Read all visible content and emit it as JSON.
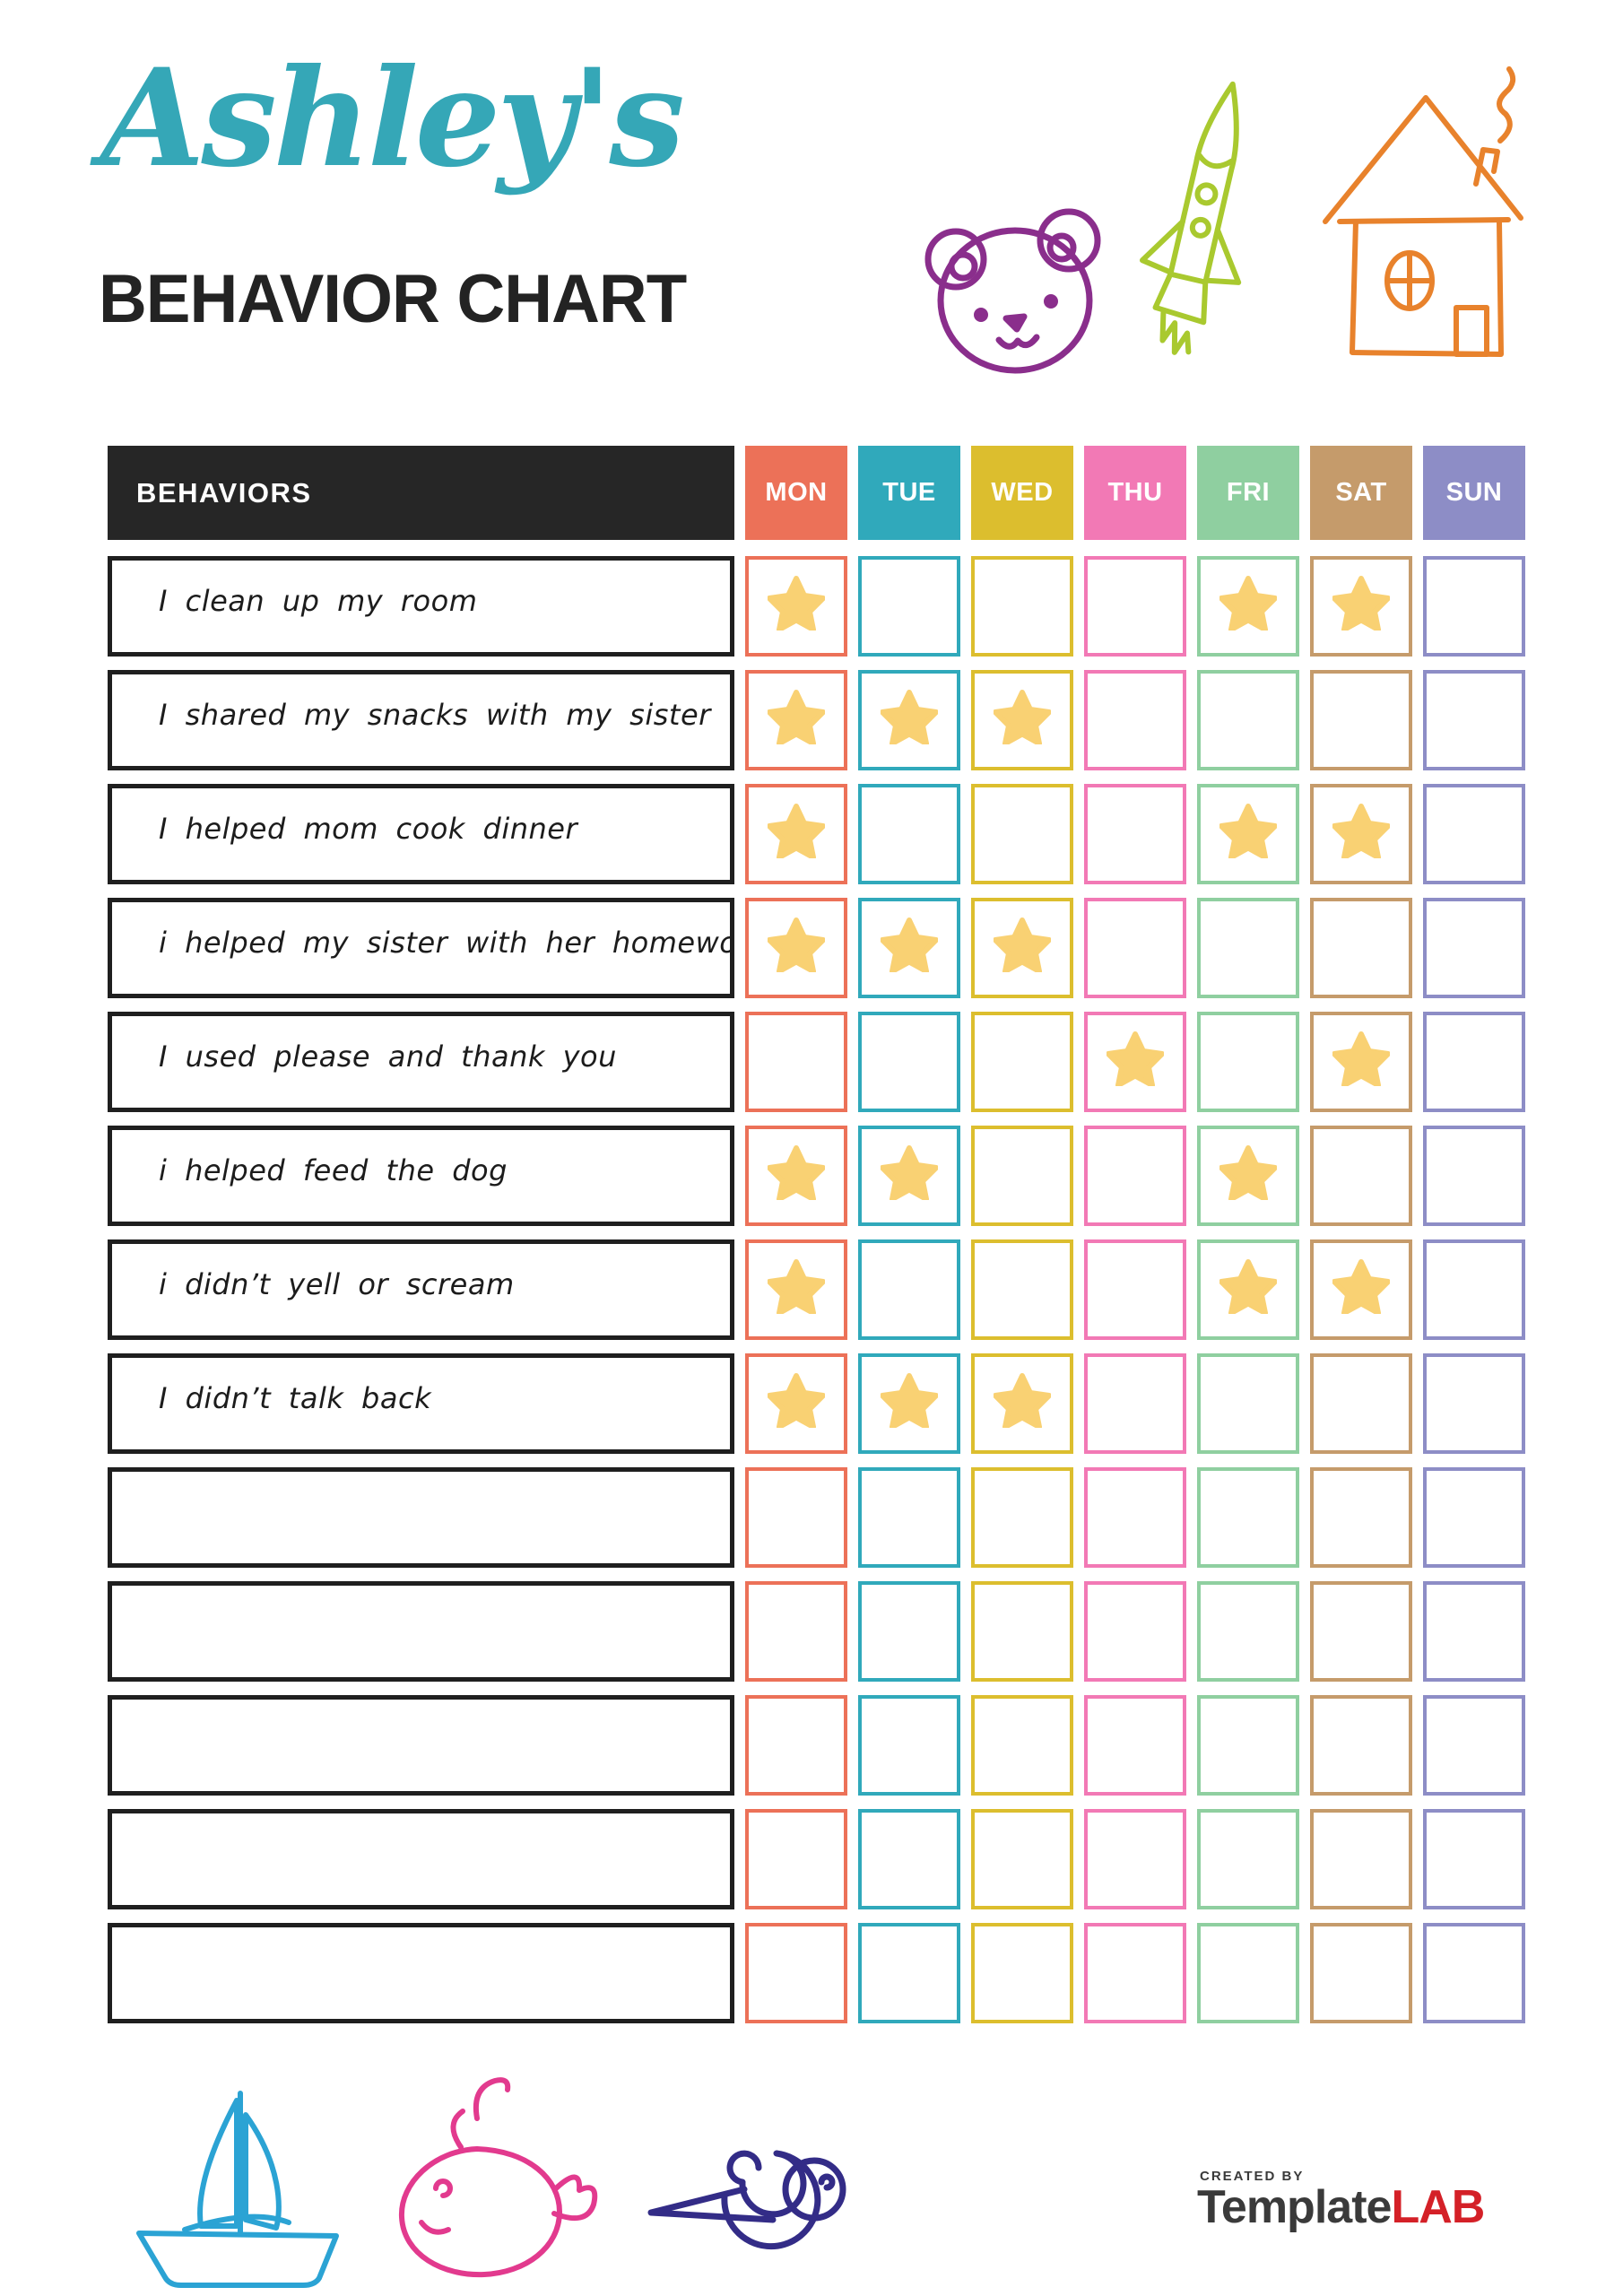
{
  "page": {
    "owner_name": "Ashley's",
    "title": "BEHAVIOR CHART"
  },
  "table": {
    "behaviors_header": "BEHAVIORS",
    "days": [
      {
        "label": "MON",
        "color": "#EC7158"
      },
      {
        "label": "TUE",
        "color": "#30A9BB"
      },
      {
        "label": "WED",
        "color": "#DCBE2E"
      },
      {
        "label": "THU",
        "color": "#F279B5"
      },
      {
        "label": "FRI",
        "color": "#8FCFA0"
      },
      {
        "label": "SAT",
        "color": "#C59B6B"
      },
      {
        "label": "SUN",
        "color": "#8D8DC6"
      }
    ],
    "rows": [
      {
        "behavior": "I clean up my room",
        "stars": [
          1,
          0,
          0,
          0,
          1,
          1,
          0
        ]
      },
      {
        "behavior": "I shared my snacks with my sister",
        "stars": [
          1,
          1,
          1,
          0,
          0,
          0,
          0
        ]
      },
      {
        "behavior": "I helped mom cook dinner",
        "stars": [
          1,
          0,
          0,
          0,
          1,
          1,
          0
        ]
      },
      {
        "behavior": "i helped my sister with her homework",
        "stars": [
          1,
          1,
          1,
          0,
          0,
          0,
          0
        ]
      },
      {
        "behavior": "I used please and thank you",
        "stars": [
          0,
          0,
          0,
          1,
          0,
          1,
          0
        ]
      },
      {
        "behavior": "i helped feed the dog",
        "stars": [
          1,
          1,
          0,
          0,
          1,
          0,
          0
        ]
      },
      {
        "behavior": "i didn’t yell or scream",
        "stars": [
          1,
          0,
          0,
          0,
          1,
          1,
          0
        ]
      },
      {
        "behavior": "I didn’t talk back",
        "stars": [
          1,
          1,
          1,
          0,
          0,
          0,
          0
        ]
      },
      {
        "behavior": "",
        "stars": [
          0,
          0,
          0,
          0,
          0,
          0,
          0
        ]
      },
      {
        "behavior": "",
        "stars": [
          0,
          0,
          0,
          0,
          0,
          0,
          0
        ]
      },
      {
        "behavior": "",
        "stars": [
          0,
          0,
          0,
          0,
          0,
          0,
          0
        ]
      },
      {
        "behavior": "",
        "stars": [
          0,
          0,
          0,
          0,
          0,
          0,
          0
        ]
      },
      {
        "behavior": "",
        "stars": [
          0,
          0,
          0,
          0,
          0,
          0,
          0
        ]
      }
    ]
  },
  "icons": {
    "top": [
      "bear-icon",
      "rocket-icon",
      "house-icon"
    ],
    "bottom": [
      "sailboat-icon",
      "whale-icon",
      "snail-icon"
    ]
  },
  "footer": {
    "created_by": "CREATED BY",
    "brand_primary": "Template",
    "brand_accent": "LAB"
  },
  "colors": {
    "teal_title": "#35A7B7",
    "ink": "#232323",
    "header_bg": "#262626",
    "row_border": "#1F1F1F",
    "star": "#F9D173",
    "bear": "#8A2E8C",
    "rocket": "#A9C92F",
    "house": "#E8822C",
    "sailboat": "#2BA3D4",
    "whale": "#E23A8E",
    "snail": "#332C87",
    "logo_gray": "#3A3A3A",
    "logo_red": "#D42027"
  }
}
